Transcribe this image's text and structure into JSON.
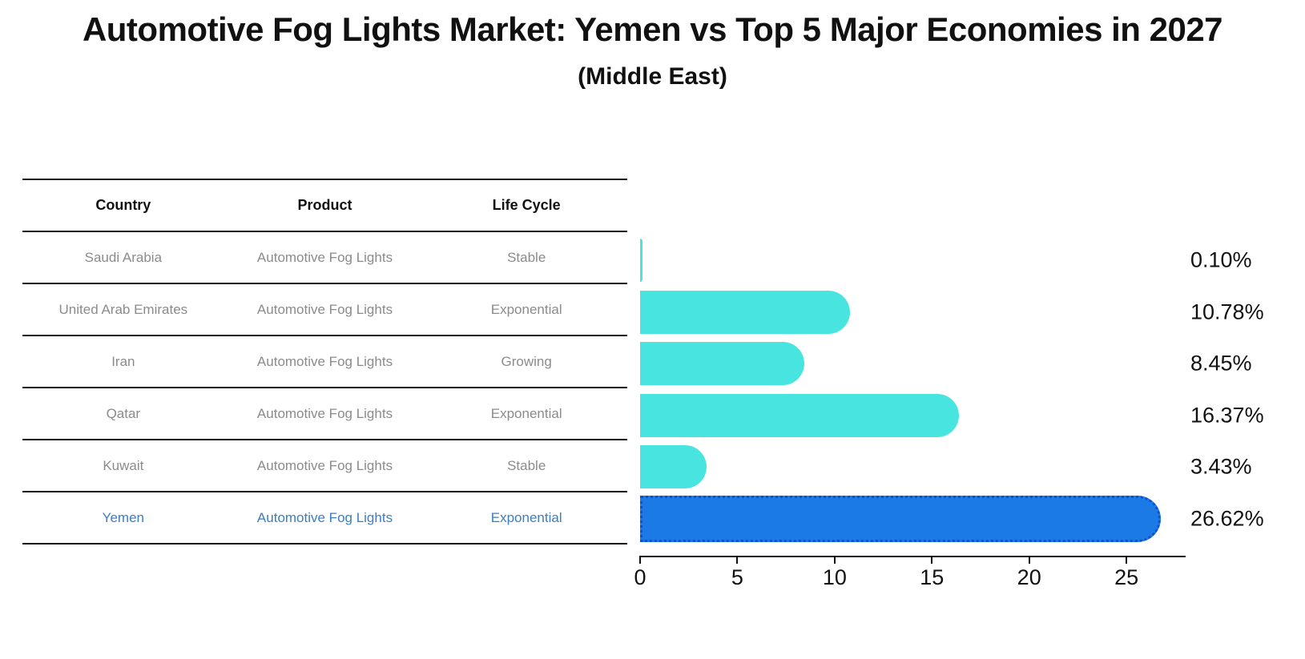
{
  "title": "Automotive Fog Lights Market: Yemen vs Top 5 Major Economies in 2027",
  "subtitle": "(Middle East)",
  "table": {
    "headers": [
      "Country",
      "Product",
      "Life Cycle"
    ],
    "rows": [
      {
        "country": "Saudi Arabia",
        "product": "Automotive Fog Lights",
        "life_cycle": "Stable",
        "highlighted": false
      },
      {
        "country": "United Arab Emirates",
        "product": "Automotive Fog Lights",
        "life_cycle": "Exponential",
        "highlighted": false
      },
      {
        "country": "Iran",
        "product": "Automotive Fog Lights",
        "life_cycle": "Growing",
        "highlighted": false
      },
      {
        "country": "Qatar",
        "product": "Automotive Fog Lights",
        "life_cycle": "Exponential",
        "highlighted": false
      },
      {
        "country": "Kuwait",
        "product": "Automotive Fog Lights",
        "life_cycle": "Stable",
        "highlighted": false
      },
      {
        "country": "Yemen",
        "product": "Automotive Fog Lights",
        "life_cycle": "Exponential",
        "highlighted": true
      }
    ]
  },
  "chart_data": {
    "type": "bar",
    "orientation": "horizontal",
    "title": "Automotive Fog Lights Market: Yemen vs Top 5 Major Economies in 2027",
    "subtitle": "(Middle East)",
    "categories": [
      "Saudi Arabia",
      "United Arab Emirates",
      "Iran",
      "Qatar",
      "Kuwait",
      "Yemen"
    ],
    "values": [
      0.1,
      10.78,
      8.45,
      16.37,
      3.43,
      26.62
    ],
    "value_labels": [
      "0.10%",
      "10.78%",
      "8.45%",
      "16.37%",
      "3.43%",
      "26.62%"
    ],
    "highlight_index": 5,
    "xlim": [
      0,
      28
    ],
    "xticks": [
      0,
      5,
      10,
      15,
      20,
      25
    ],
    "grid": false,
    "legend": false,
    "bar_color": "#48E5E0",
    "highlight_bar_color": "#1B7AE5",
    "highlight_border_color": "#0D52C8",
    "label_color": "#111111"
  },
  "colors": {
    "background": "#FFFFFF",
    "title_text": "#111111",
    "table_line": "#111111",
    "header_text": "#111111",
    "row_text": "#8B8B8B",
    "highlight_row_text": "#3B7EC2"
  }
}
